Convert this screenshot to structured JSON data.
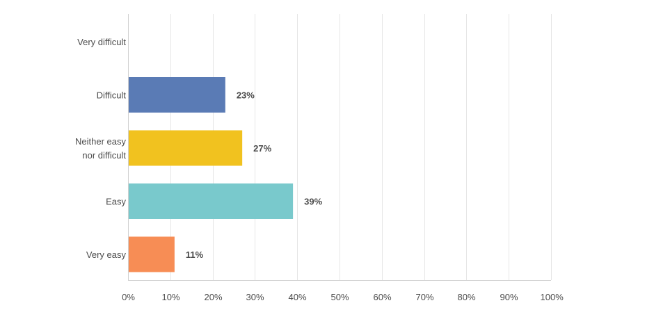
{
  "chart_data": {
    "type": "bar",
    "orientation": "horizontal",
    "categories": [
      "Very difficult",
      "Difficult",
      "Neither easy nor difficult",
      "Easy",
      "Very easy"
    ],
    "category_lines": [
      [
        "Very difficult"
      ],
      [
        "Difficult"
      ],
      [
        "Neither easy",
        "nor difficult"
      ],
      [
        "Easy"
      ],
      [
        "Very easy"
      ]
    ],
    "values": [
      0,
      23,
      27,
      39,
      11
    ],
    "data_labels": [
      "",
      "23%",
      "27%",
      "39%",
      "11%"
    ],
    "colors": [
      "#ffffff",
      "#5a7bb5",
      "#f1c21f",
      "#79c9cc",
      "#f78d55"
    ],
    "x_ticks": [
      0,
      10,
      20,
      30,
      40,
      50,
      60,
      70,
      80,
      90,
      100
    ],
    "x_tick_labels": [
      "0%",
      "10%",
      "20%",
      "30%",
      "40%",
      "50%",
      "60%",
      "70%",
      "80%",
      "90%",
      "100%"
    ],
    "xlim": [
      0,
      100
    ],
    "grid": true,
    "legend": "none",
    "title": "",
    "xlabel": "",
    "ylabel": ""
  }
}
